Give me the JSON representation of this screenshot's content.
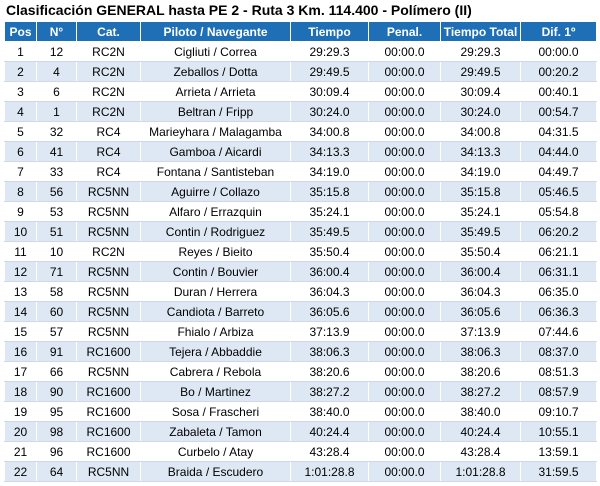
{
  "title": "Clasificación GENERAL hasta PE 2 - Ruta 3 Km. 114.400 - Polímero (II)",
  "columns": [
    "Pos",
    "N°",
    "Cat.",
    "Piloto / Navegante",
    "Tiempo",
    "Penal.",
    "Tiempo Total",
    "Dif. 1º"
  ],
  "rows": [
    [
      "1",
      "12",
      "RC2N",
      "Cigliuti / Correa",
      "29:29.3",
      "00:00.0",
      "29:29.3",
      "00:00.0"
    ],
    [
      "2",
      "4",
      "RC2N",
      "Zeballos / Dotta",
      "29:49.5",
      "00:00.0",
      "29:49.5",
      "00:20.2"
    ],
    [
      "3",
      "6",
      "RC2N",
      "Arrieta / Arrieta",
      "30:09.4",
      "00:00.0",
      "30:09.4",
      "00:40.1"
    ],
    [
      "4",
      "1",
      "RC2N",
      "Beltran / Fripp",
      "30:24.0",
      "00:00.0",
      "30:24.0",
      "00:54.7"
    ],
    [
      "5",
      "32",
      "RC4",
      "Marieyhara / Malagamba",
      "34:00.8",
      "00:00.0",
      "34:00.8",
      "04:31.5"
    ],
    [
      "6",
      "41",
      "RC4",
      "Gamboa / Aicardi",
      "34:13.3",
      "00:00.0",
      "34:13.3",
      "04:44.0"
    ],
    [
      "7",
      "33",
      "RC4",
      "Fontana / Santisteban",
      "34:19.0",
      "00:00.0",
      "34:19.0",
      "04:49.7"
    ],
    [
      "8",
      "56",
      "RC5NN",
      "Aguirre / Collazo",
      "35:15.8",
      "00:00.0",
      "35:15.8",
      "05:46.5"
    ],
    [
      "9",
      "53",
      "RC5NN",
      "Alfaro / Errazquin",
      "35:24.1",
      "00:00.0",
      "35:24.1",
      "05:54.8"
    ],
    [
      "10",
      "51",
      "RC5NN",
      "Contin / Rodriguez",
      "35:49.5",
      "00:00.0",
      "35:49.5",
      "06:20.2"
    ],
    [
      "11",
      "10",
      "RC2N",
      "Reyes / Bieito",
      "35:50.4",
      "00:00.0",
      "35:50.4",
      "06:21.1"
    ],
    [
      "12",
      "71",
      "RC5NN",
      "Contin / Bouvier",
      "36:00.4",
      "00:00.0",
      "36:00.4",
      "06:31.1"
    ],
    [
      "13",
      "58",
      "RC5NN",
      "Duran / Herrera",
      "36:04.3",
      "00:00.0",
      "36:04.3",
      "06:35.0"
    ],
    [
      "14",
      "60",
      "RC5NN",
      "Candiota / Barreto",
      "36:05.6",
      "00:00.0",
      "36:05.6",
      "06:36.3"
    ],
    [
      "15",
      "57",
      "RC5NN",
      "Fhialo / Arbiza",
      "37:13.9",
      "00:00.0",
      "37:13.9",
      "07:44.6"
    ],
    [
      "16",
      "91",
      "RC1600",
      "Tejera / Abbaddie",
      "38:06.3",
      "00:00.0",
      "38:06.3",
      "08:37.0"
    ],
    [
      "17",
      "66",
      "RC5NN",
      "Cabrera / Rebola",
      "38:20.6",
      "00:00.0",
      "38:20.6",
      "08:51.3"
    ],
    [
      "18",
      "90",
      "RC1600",
      "Bo / Martinez",
      "38:27.2",
      "00:00.0",
      "38:27.2",
      "08:57.9"
    ],
    [
      "19",
      "95",
      "RC1600",
      "Sosa / Frascheri",
      "38:40.0",
      "00:00.0",
      "38:40.0",
      "09:10.7"
    ],
    [
      "20",
      "98",
      "RC1600",
      "Zabaleta / Tamon",
      "40:24.4",
      "00:00.0",
      "40:24.4",
      "10:55.1"
    ],
    [
      "21",
      "96",
      "RC1600",
      "Curbelo / Atay",
      "43:28.4",
      "00:00.0",
      "43:28.4",
      "13:59.1"
    ],
    [
      "22",
      "64",
      "RC5NN",
      "Braida / Escudero",
      "1:01:28.8",
      "00:00.0",
      "1:01:28.8",
      "31:59.5"
    ]
  ],
  "colors": {
    "header_bg": "#1f6fb6",
    "header_text": "#ffffff",
    "row_alt_bg": "#dde8f4"
  }
}
